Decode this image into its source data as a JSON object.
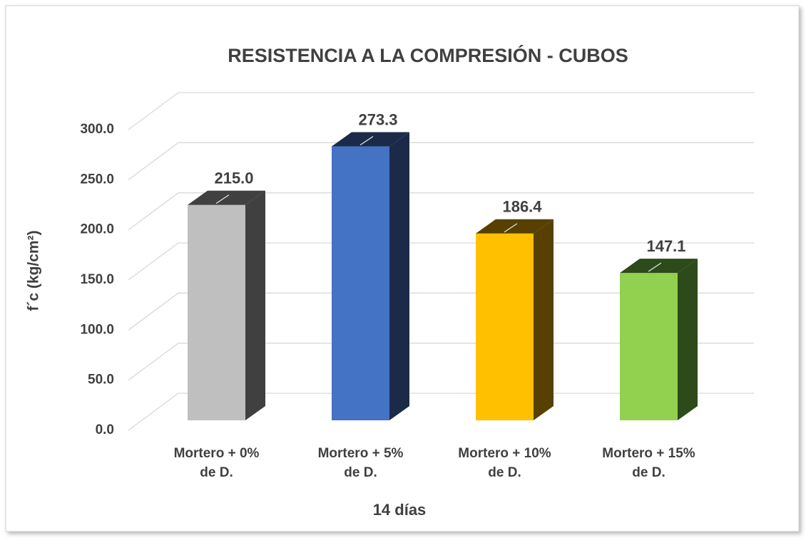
{
  "chart_data": {
    "type": "bar3d",
    "title": "RESISTENCIA A LA COMPRESIÓN - CUBOS",
    "x_label": "14 días",
    "y_label": "f´c (kg/cm²)",
    "categories": [
      [
        "Mortero + 0%",
        "de D."
      ],
      [
        "Mortero + 5%",
        "de D."
      ],
      [
        "Mortero + 10%",
        "de D."
      ],
      [
        "Mortero + 15%",
        "de D."
      ]
    ],
    "values": [
      215.0,
      273.3,
      186.4,
      147.1
    ],
    "value_labels": [
      "215.0",
      "273.3",
      "186.4",
      "147.1"
    ],
    "colors": [
      "#bfbfbf",
      "#4472c4",
      "#ffc000",
      "#92d050"
    ],
    "side_colors": [
      "#404040",
      "#1c2a4a",
      "#584000",
      "#2d4a1a"
    ],
    "ylim": [
      0,
      300
    ],
    "yticks": [
      {
        "value": 0,
        "label": "0.0"
      },
      {
        "value": 50,
        "label": "50.0"
      },
      {
        "value": 100,
        "label": "100.0"
      },
      {
        "value": 150,
        "label": "150.0"
      },
      {
        "value": 200,
        "label": "200.0"
      },
      {
        "value": 250,
        "label": "250.0"
      },
      {
        "value": 300,
        "label": "300.0"
      }
    ],
    "grid": true
  }
}
